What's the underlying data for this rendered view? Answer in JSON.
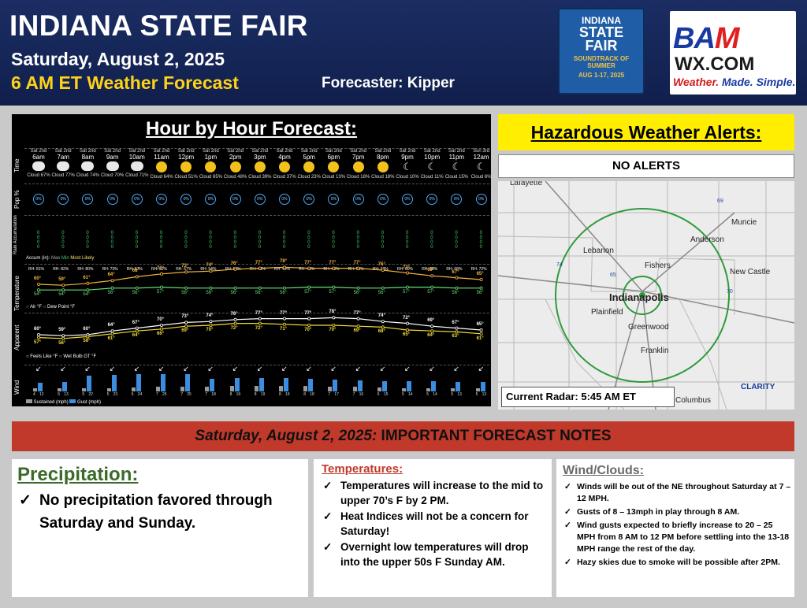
{
  "header": {
    "title": "INDIANA STATE FAIR",
    "date": "Saturday, August 2, 2025",
    "subtitle": "6 AM ET Weather Forecast",
    "forecaster": "Forecaster: Kipper"
  },
  "isf_logo": {
    "line1": "INDIANA",
    "line2": "STATE",
    "line3": "FAIR",
    "tag": "SOUNDTRACK OF SUMMER",
    "dates": "AUG 1-17, 2025"
  },
  "bam_logo": {
    "line1a": "BA",
    "line1b": "M",
    "line2": "WX.COM",
    "tag_a": "Weather.",
    "tag_b": "Made.",
    "tag_c": "Simple."
  },
  "hourly": {
    "title": "Hour by Hour Forecast:",
    "row_labels": {
      "time": "Time",
      "pop": "Pop %",
      "rain": "Rain Accumulation",
      "temp": "Temperature",
      "apparent": "Apparent",
      "wind": "Wind"
    },
    "hours": [
      {
        "day": "Sat 2nd",
        "hour": "6am",
        "sky": "cloud",
        "cloud": "Cloud 67%",
        "pop": "0%",
        "rh": "RH: 81%",
        "temp": "60°",
        "dew": "54°",
        "feels": "60°",
        "wbgt": "57°",
        "arrow": "↙",
        "sustained": 4,
        "gust": 12
      },
      {
        "day": "Sat 2nd",
        "hour": "7am",
        "sky": "cloud",
        "cloud": "Cloud 77%",
        "pop": "0%",
        "rh": "RH: 82%",
        "temp": "59°",
        "dew": "54°",
        "feels": "59°",
        "wbgt": "56°",
        "arrow": "↙",
        "sustained": 5,
        "gust": 13
      },
      {
        "day": "Sat 2nd",
        "hour": "8am",
        "sky": "cloud",
        "cloud": "Cloud 74%",
        "pop": "0%",
        "rh": "RH: 80%",
        "temp": "61°",
        "dew": "54°",
        "feels": "60°",
        "wbgt": "58°",
        "arrow": "↙",
        "sustained": 5,
        "gust": 22
      },
      {
        "day": "Sat 2nd",
        "hour": "9am",
        "sky": "cloud",
        "cloud": "Cloud 70%",
        "pop": "0%",
        "rh": "RH: 73%",
        "temp": "64°",
        "dew": "56°",
        "feels": "64°",
        "wbgt": "61°",
        "arrow": "↙",
        "sustained": 5,
        "gust": 23
      },
      {
        "day": "Sat 2nd",
        "hour": "10am",
        "sky": "cloud",
        "cloud": "Cloud 71%",
        "pop": "0%",
        "rh": "RH: 67%",
        "temp": "68°",
        "dew": "56°",
        "feels": "67°",
        "wbgt": "64°",
        "arrow": "↙",
        "sustained": 6,
        "gust": 24
      },
      {
        "day": "Sat 2nd",
        "hour": "11am",
        "sky": "sun",
        "cloud": "Cloud 64%",
        "pop": "0%",
        "rh": "RH: 62%",
        "temp": "71°",
        "dew": "57°",
        "feels": "70°",
        "wbgt": "66°",
        "arrow": "↙",
        "sustained": 7,
        "gust": 25
      },
      {
        "day": "Sat 2nd",
        "hour": "12pm",
        "sky": "sun",
        "cloud": "Cloud 51%",
        "pop": "0%",
        "rh": "RH: 57%",
        "temp": "73°",
        "dew": "56°",
        "feels": "73°",
        "wbgt": "69°",
        "arrow": "↙",
        "sustained": 7,
        "gust": 25
      },
      {
        "day": "Sat 2nd",
        "hour": "1pm",
        "sky": "sun",
        "cloud": "Cloud 65%",
        "pop": "0%",
        "rh": "RH: 54%",
        "temp": "74°",
        "dew": "56°",
        "feels": "74°",
        "wbgt": "70°",
        "arrow": "↙",
        "sustained": 7,
        "gust": 18
      },
      {
        "day": "Sat 2nd",
        "hour": "2pm",
        "sky": "sun",
        "cloud": "Cloud 48%",
        "pop": "0%",
        "rh": "RH: 50%",
        "temp": "76°",
        "dew": "56°",
        "feels": "76°",
        "wbgt": "72°",
        "arrow": "↙",
        "sustained": 8,
        "gust": 19
      },
      {
        "day": "Sat 2nd",
        "hour": "3pm",
        "sky": "sun",
        "cloud": "Cloud 39%",
        "pop": "0%",
        "rh": "RH: 48%",
        "temp": "77°",
        "dew": "56°",
        "feels": "77°",
        "wbgt": "72°",
        "arrow": "↙",
        "sustained": 8,
        "gust": 19
      },
      {
        "day": "Sat 2nd",
        "hour": "4pm",
        "sky": "sun",
        "cloud": "Cloud 37%",
        "pop": "0%",
        "rh": "RH: 49%",
        "temp": "78°",
        "dew": "56°",
        "feels": "77°",
        "wbgt": "71°",
        "arrow": "↙",
        "sustained": 8,
        "gust": 19
      },
      {
        "day": "Sat 2nd",
        "hour": "5pm",
        "sky": "sun",
        "cloud": "Cloud 23%",
        "pop": "0%",
        "rh": "RH: 48%",
        "temp": "77°",
        "dew": "57°",
        "feels": "77°",
        "wbgt": "70°",
        "arrow": "↙",
        "sustained": 8,
        "gust": 18
      },
      {
        "day": "Sat 2nd",
        "hour": "6pm",
        "sky": "sun",
        "cloud": "Cloud 13%",
        "pop": "0%",
        "rh": "RH: 48%",
        "temp": "77°",
        "dew": "57°",
        "feels": "78°",
        "wbgt": "70°",
        "arrow": "↙",
        "sustained": 7,
        "gust": 17
      },
      {
        "day": "Sat 2nd",
        "hour": "7pm",
        "sky": "sun",
        "cloud": "Cloud 18%",
        "pop": "0%",
        "rh": "RH: 50%",
        "temp": "77°",
        "dew": "56°",
        "feels": "77°",
        "wbgt": "69°",
        "arrow": "↙",
        "sustained": 7,
        "gust": 16
      },
      {
        "day": "Sat 2nd",
        "hour": "8pm",
        "sky": "sun",
        "cloud": "Cloud 18%",
        "pop": "0%",
        "rh": "RH: 53%",
        "temp": "75°",
        "dew": "56°",
        "feels": "74°",
        "wbgt": "68°",
        "arrow": "↙",
        "sustained": 6,
        "gust": 15
      },
      {
        "day": "Sat 2nd",
        "hour": "9pm",
        "sky": "moon",
        "cloud": "Cloud 10%",
        "pop": "0%",
        "rh": "RH: 60%",
        "temp": "72°",
        "dew": "57°",
        "feels": "72°",
        "wbgt": "65°",
        "arrow": "↙",
        "sustained": 5,
        "gust": 14
      },
      {
        "day": "Sat 2nd",
        "hour": "10pm",
        "sky": "moon",
        "cloud": "Cloud 11%",
        "pop": "0%",
        "rh": "RH: 65%",
        "temp": "69°",
        "dew": "57°",
        "feels": "69°",
        "wbgt": "64°",
        "arrow": "↙",
        "sustained": 5,
        "gust": 14
      },
      {
        "day": "Sat 2nd",
        "hour": "11pm",
        "sky": "moon",
        "cloud": "Cloud 15%",
        "pop": "0%",
        "rh": "RH: 68%",
        "temp": "67°",
        "dew": "56°",
        "feels": "67°",
        "wbgt": "63°",
        "arrow": "↙",
        "sustained": 5,
        "gust": 13
      },
      {
        "day": "Sun 3rd",
        "hour": "12am",
        "sky": "moon",
        "cloud": "Cloud 6%",
        "pop": "0%",
        "rh": "RH: 72%",
        "temp": "65°",
        "dew": "56°",
        "feels": "65°",
        "wbgt": "61°",
        "arrow": "↙",
        "sustained": 5,
        "gust": 13
      }
    ],
    "rain_legend": {
      "accum": "Accum (in):",
      "max": "Max",
      "min": "Min",
      "likely": "Most Likely"
    },
    "temp_legend": {
      "air": "Air °F",
      "dew": "Dew Point °F"
    },
    "apparent_legend": {
      "feels": "Feels Like °F",
      "wbgt": "Wet Bulb GT °F"
    },
    "wind_legend": {
      "sustained": "Sustained (mph)",
      "gust": "Gust (mph)"
    },
    "colors": {
      "temp": "#f6b53b",
      "dew": "#69e07a",
      "feels": "#ffffff",
      "wbgt": "#f4dd3a",
      "sustained": "#9a9a9a",
      "gust": "#3b8de0"
    }
  },
  "alerts": {
    "title": "Hazardous Weather Alerts:",
    "status": "NO ALERTS"
  },
  "map": {
    "radar_time": "Current Radar: 5:45 AM ET",
    "cities": [
      "Lafayette",
      "Muncie",
      "Anderson",
      "Lebanon",
      "Fishers",
      "New Castle",
      "Indianapolis",
      "Plainfield",
      "Greenwood",
      "Franklin",
      "Columbus"
    ],
    "highways": [
      "69",
      "74",
      "65",
      "70"
    ],
    "clarity": "CLARITY"
  },
  "notes": {
    "banner_italic": "Saturday, August 2, 2025:",
    "banner_rest": " IMPORTANT FORECAST NOTES",
    "precip": {
      "title": "Precipitation:",
      "items": [
        "No precipitation favored through Saturday and Sunday."
      ]
    },
    "temps": {
      "title": "Temperatures:",
      "items": [
        "Temperatures will increase to the mid to upper 70’s F by 2 PM.",
        "Heat Indices will not be a concern for Saturday!",
        "Overnight low temperatures will drop into the upper 50s F Sunday AM."
      ]
    },
    "wind": {
      "title": "Wind/Clouds:",
      "items": [
        "Winds will be out of the NE throughout Saturday at 7 – 12 MPH.",
        "Gusts of 8 – 13mph in play through 8 AM.",
        "Wind gusts expected to briefly increase to 20 – 25 MPH from 8 AM to 12 PM before settling into the 13-18 MPH range the rest of the day.",
        "Hazy skies due to smoke will be possible after 2PM."
      ]
    },
    "check": "✓"
  }
}
